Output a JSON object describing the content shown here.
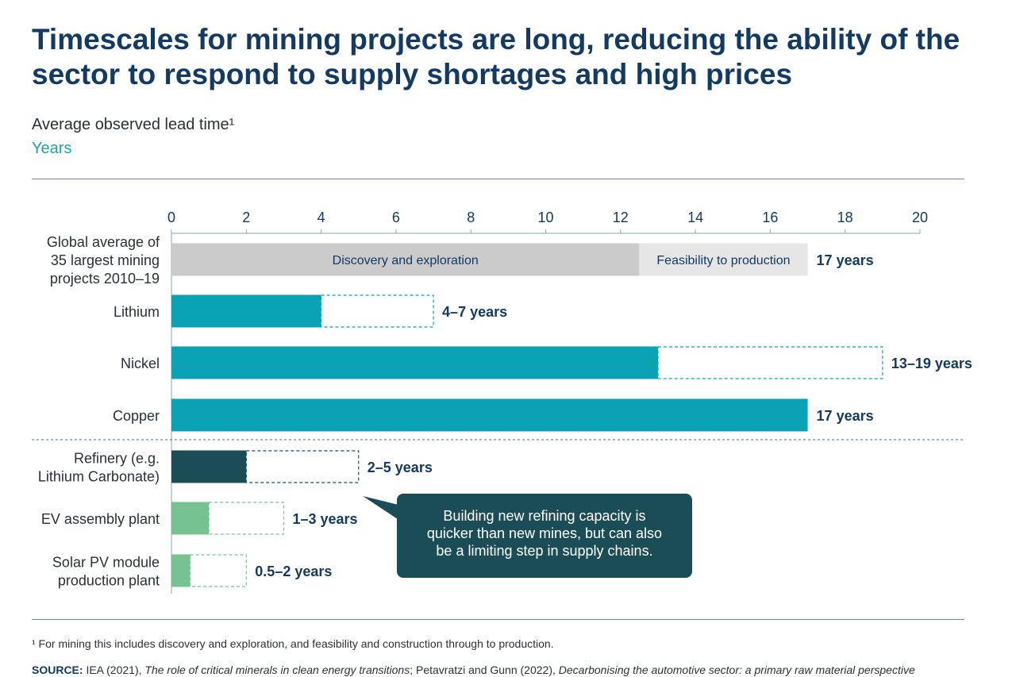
{
  "header": {
    "title": "Timescales for mining projects are long, reducing the ability of the sector to respond to supply shortages and high prices",
    "subtitle": "Average observed lead time¹",
    "unit": "Years"
  },
  "chart_data": {
    "type": "bar",
    "orientation": "horizontal",
    "stacked": true,
    "xlim": [
      0,
      20
    ],
    "xticks": [
      0,
      2,
      4,
      6,
      8,
      10,
      12,
      14,
      16,
      18,
      20
    ],
    "grid": false,
    "categories": [
      {
        "label": [
          "Global average of",
          "35 largest mining",
          "projects 2010–19"
        ],
        "min": 17,
        "max": 17,
        "value_label": "17 years",
        "segments": [
          {
            "name": "Discovery and exploration",
            "start": 0,
            "end": 12.5,
            "color": "#cbcbcb"
          },
          {
            "name": "Feasibility to production",
            "start": 12.5,
            "end": 17,
            "color": "#e6e6e6"
          }
        ]
      },
      {
        "label": [
          "Lithium"
        ],
        "min": 4,
        "max": 7,
        "value_label": "4–7 years",
        "color": "#0aa2b4"
      },
      {
        "label": [
          "Nickel"
        ],
        "min": 13,
        "max": 19,
        "value_label": "13–19 years",
        "color": "#0aa2b4"
      },
      {
        "label": [
          "Copper"
        ],
        "min": 17,
        "max": 17,
        "value_label": "17 years",
        "color": "#0aa2b4"
      },
      {
        "label": [
          "Refinery (e.g.",
          "Lithium Carbonate)"
        ],
        "min": 2,
        "max": 5,
        "value_label": "2–5 years",
        "color": "#1a4d55"
      },
      {
        "label": [
          "EV assembly plant"
        ],
        "min": 1,
        "max": 3,
        "value_label": "1–3 years",
        "color": "#76c290"
      },
      {
        "label": [
          "Solar PV module",
          "production plant"
        ],
        "min": 0.5,
        "max": 2,
        "value_label": "0.5–2 years",
        "color": "#76c290"
      }
    ],
    "annotation": {
      "lines": [
        "Building new refining capacity is",
        "quicker than new mines, but can also",
        "be a limiting step in supply chains."
      ],
      "color": "#1a4d55"
    }
  },
  "footer": {
    "footnote": "¹ For mining this includes discovery and exploration, and feasibility and construction through to production.",
    "source_label": "SOURCE:",
    "source_part1": " IEA (2021), ",
    "source_title1": "The role of critical minerals in clean energy transitions",
    "source_part2": "; Petavratzi and Gunn (2022), ",
    "source_title2": "Decarbonising the automotive sector: a primary raw material perspective"
  }
}
